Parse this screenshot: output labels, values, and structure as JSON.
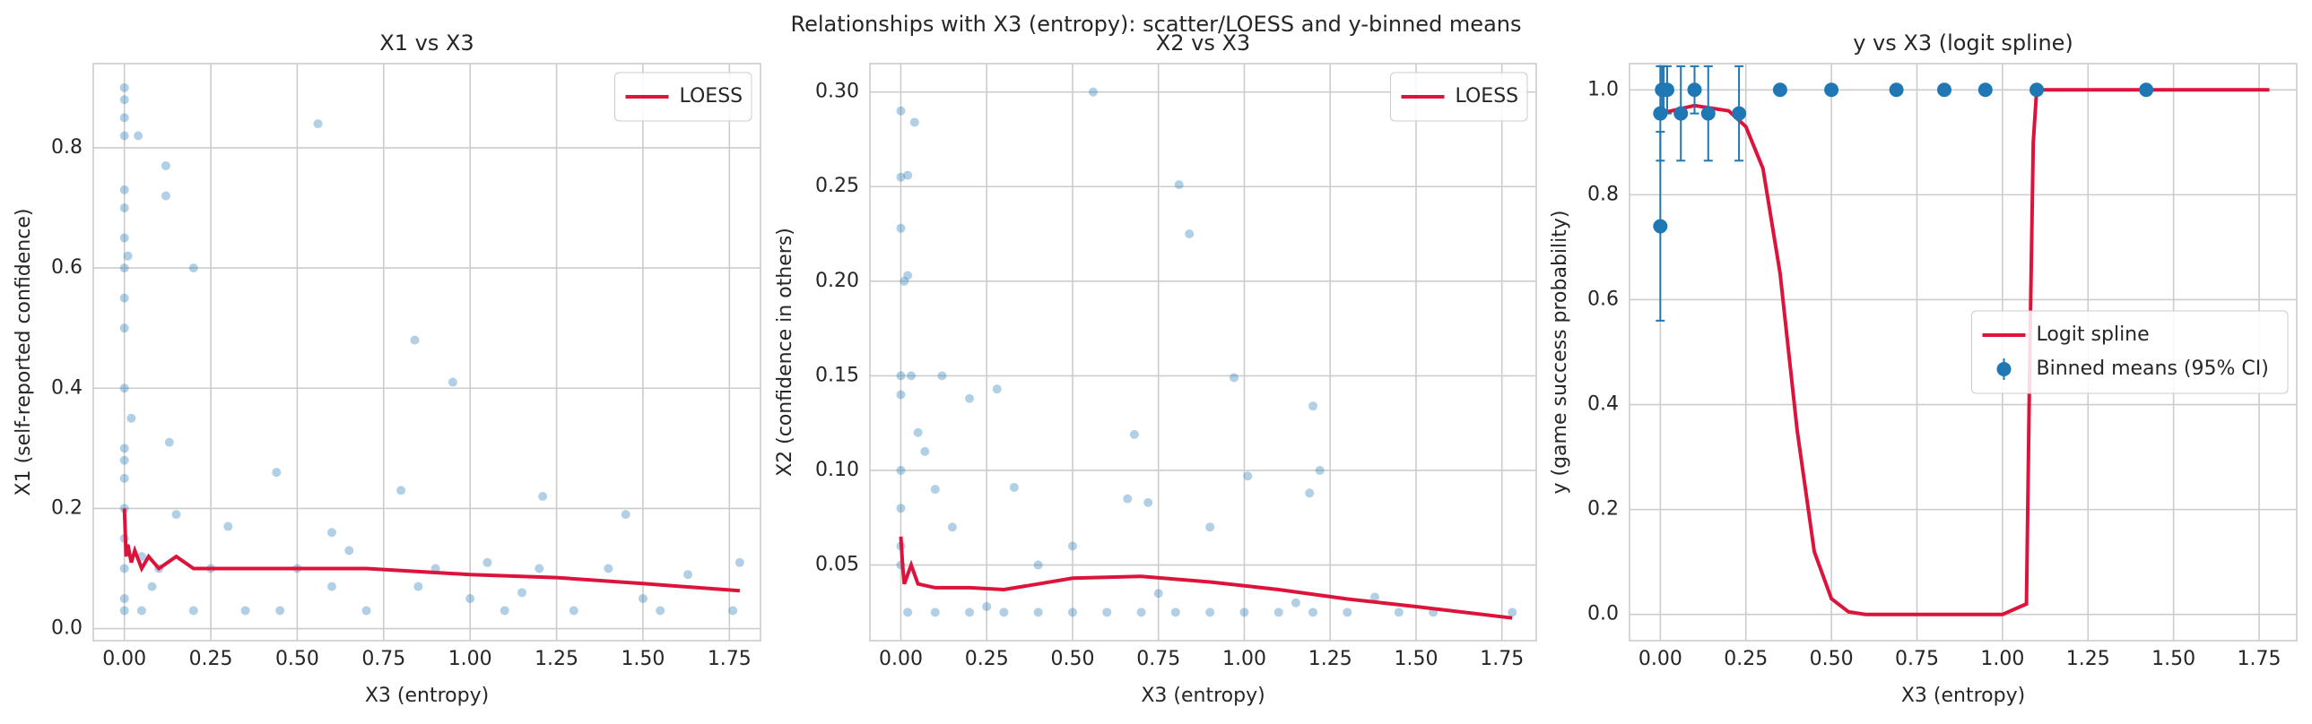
{
  "title": "Relationships with X3 (entropy): scatter/LOESS and y-binned means",
  "chart_data": [
    {
      "type": "scatter",
      "title": "X1 vs X3",
      "xlabel": "X3 (entropy)",
      "ylabel": "X1 (self-reported confidence)",
      "xlim": [
        -0.09,
        1.84
      ],
      "ylim": [
        -0.02,
        0.94
      ],
      "xticks": [
        {
          "value": 0,
          "label": "0.00"
        },
        0.25,
        {
          "value": 0.5,
          "label": "0.50"
        },
        0.75,
        {
          "value": 1,
          "label": "1.00"
        },
        1.25,
        {
          "value": 1.5,
          "label": "1.50"
        },
        1.75
      ],
      "yticks": [
        {
          "value": 0,
          "label": "0.0"
        },
        0.2,
        0.4,
        0.6,
        0.8
      ],
      "grid": true,
      "legend": "upper right",
      "series": [
        {
          "type": "scatter",
          "color": "#1f77b4",
          "x": [
            0,
            0,
            0,
            0,
            0,
            0,
            0,
            0,
            0,
            0,
            0,
            0,
            0,
            0,
            0,
            0,
            0,
            0,
            0,
            0.01,
            0.02,
            0.04,
            0.05,
            0.12,
            0.12,
            0.13,
            0.2,
            0.56,
            0.84,
            0.95,
            0.44,
            0.8,
            1.21,
            1.45,
            0.15,
            0.3,
            0.6,
            0.1,
            0.25,
            0.35,
            0.45,
            0.5,
            0.65,
            0.7,
            0.9,
            1.0,
            1.05,
            1.1,
            1.2,
            1.3,
            1.4,
            1.5,
            1.55,
            1.63,
            1.78,
            1.76,
            0.2,
            0.05,
            0.08,
            0.6,
            0.85,
            1.15
          ],
          "values": [
            0.9,
            0.88,
            0.85,
            0.82,
            0.73,
            0.7,
            0.65,
            0.6,
            0.55,
            0.5,
            0.4,
            0.3,
            0.28,
            0.25,
            0.2,
            0.15,
            0.1,
            0.05,
            0.03,
            0.62,
            0.35,
            0.82,
            0.12,
            0.77,
            0.72,
            0.31,
            0.6,
            0.84,
            0.48,
            0.41,
            0.26,
            0.23,
            0.22,
            0.19,
            0.19,
            0.17,
            0.16,
            0.1,
            0.1,
            0.03,
            0.03,
            0.1,
            0.13,
            0.03,
            0.1,
            0.05,
            0.11,
            0.03,
            0.1,
            0.03,
            0.1,
            0.05,
            0.03,
            0.09,
            0.11,
            0.03,
            0.03,
            0.03,
            0.07,
            0.07,
            0.07,
            0.06
          ]
        },
        {
          "type": "line",
          "name": "LOESS",
          "color": "#dc143c",
          "x": [
            0,
            0.005,
            0.01,
            0.02,
            0.03,
            0.05,
            0.07,
            0.1,
            0.15,
            0.2,
            0.3,
            0.5,
            0.7,
            1.0,
            1.25,
            1.5,
            1.78
          ],
          "values": [
            0.2,
            0.12,
            0.14,
            0.11,
            0.13,
            0.1,
            0.12,
            0.1,
            0.12,
            0.1,
            0.1,
            0.1,
            0.1,
            0.09,
            0.085,
            0.075,
            0.063
          ]
        }
      ]
    },
    {
      "type": "scatter",
      "title": "X2 vs X3",
      "xlabel": "X3 (entropy)",
      "ylabel": "X2 (confidence in others)",
      "xlim": [
        -0.09,
        1.85
      ],
      "ylim": [
        0.01,
        0.315
      ],
      "xticks": [
        {
          "value": 0,
          "label": "0.00"
        },
        0.25,
        {
          "value": 0.5,
          "label": "0.50"
        },
        0.75,
        {
          "value": 1,
          "label": "1.00"
        },
        1.25,
        {
          "value": 1.5,
          "label": "1.50"
        },
        1.75
      ],
      "yticks": [
        0.05,
        {
          "value": 0.1,
          "label": "0.10"
        },
        0.15,
        {
          "value": 0.2,
          "label": "0.20"
        },
        0.25,
        {
          "value": 0.3,
          "label": "0.30"
        }
      ],
      "grid": true,
      "legend": "upper right",
      "series": [
        {
          "type": "scatter",
          "color": "#1f77b4",
          "x": [
            0,
            0,
            0.02,
            0.04,
            0,
            0.01,
            0.02,
            0,
            0,
            0.03,
            0.12,
            0.05,
            0,
            0,
            0,
            0,
            0.56,
            0.81,
            0.84,
            0.97,
            1.2,
            1.22,
            1.19,
            1.01,
            0.68,
            0.28,
            0.2,
            0.33,
            0.07,
            0.1,
            0.15,
            0.66,
            0.72,
            0.9,
            0.5,
            0.4,
            1.38,
            0.02,
            0.1,
            0.2,
            0.3,
            0.4,
            0.5,
            0.6,
            0.7,
            0.8,
            0.9,
            1.0,
            1.1,
            1.2,
            1.3,
            1.45,
            1.55,
            1.78,
            0.25,
            0.75,
            1.15
          ],
          "values": [
            0.29,
            0.255,
            0.256,
            0.284,
            0.228,
            0.2,
            0.203,
            0.15,
            0.14,
            0.15,
            0.15,
            0.12,
            0.1,
            0.08,
            0.06,
            0.05,
            0.3,
            0.251,
            0.225,
            0.149,
            0.134,
            0.1,
            0.088,
            0.097,
            0.119,
            0.143,
            0.138,
            0.091,
            0.11,
            0.09,
            0.07,
            0.085,
            0.083,
            0.07,
            0.06,
            0.05,
            0.033,
            0.025,
            0.025,
            0.025,
            0.025,
            0.025,
            0.025,
            0.025,
            0.025,
            0.025,
            0.025,
            0.025,
            0.025,
            0.025,
            0.025,
            0.025,
            0.025,
            0.025,
            0.028,
            0.035,
            0.03
          ]
        },
        {
          "type": "line",
          "name": "LOESS",
          "color": "#dc143c",
          "x": [
            0,
            0.005,
            0.01,
            0.03,
            0.05,
            0.1,
            0.2,
            0.3,
            0.4,
            0.5,
            0.7,
            0.9,
            1.1,
            1.3,
            1.5,
            1.78
          ],
          "values": [
            0.065,
            0.05,
            0.04,
            0.05,
            0.04,
            0.038,
            0.038,
            0.037,
            0.04,
            0.043,
            0.044,
            0.041,
            0.037,
            0.032,
            0.028,
            0.022
          ]
        }
      ]
    },
    {
      "type": "scatter",
      "title": "y vs X3 (logit spline)",
      "xlabel": "X3 (entropy)",
      "ylabel": "y (game success probability)",
      "xlim": [
        -0.09,
        1.86
      ],
      "ylim": [
        -0.05,
        1.05
      ],
      "xticks": [
        {
          "value": 0,
          "label": "0.00"
        },
        0.25,
        {
          "value": 0.5,
          "label": "0.50"
        },
        0.75,
        {
          "value": 1,
          "label": "1.00"
        },
        1.25,
        {
          "value": 1.5,
          "label": "1.50"
        },
        1.75
      ],
      "yticks": [
        {
          "value": 0,
          "label": "0.0"
        },
        0.2,
        0.4,
        0.6,
        0.8,
        {
          "value": 1,
          "label": "1.0"
        }
      ],
      "grid": true,
      "legend": "center right",
      "series": [
        {
          "type": "line",
          "name": "Logit spline",
          "color": "#dc143c",
          "x": [
            0,
            0.1,
            0.2,
            0.25,
            0.3,
            0.35,
            0.4,
            0.45,
            0.5,
            0.55,
            0.6,
            0.8,
            1.0,
            1.07,
            1.08,
            1.09,
            1.1,
            1.3,
            1.78
          ],
          "values": [
            0.955,
            0.97,
            0.96,
            0.93,
            0.85,
            0.65,
            0.35,
            0.12,
            0.03,
            0.005,
            0,
            0,
            0,
            0.02,
            0.5,
            0.9,
            1,
            1,
            1
          ]
        },
        {
          "type": "errorbar",
          "name": "Binned means (95% CI)",
          "color": "#1f77b4",
          "x": [
            0,
            0,
            0.005,
            0.01,
            0.02,
            0.06,
            0.1,
            0.14,
            0.23,
            0.35,
            0.5,
            0.69,
            0.83,
            0.95,
            1.1,
            1.42
          ],
          "values": [
            0.74,
            0.955,
            1,
            1,
            1,
            0.955,
            1,
            0.955,
            0.955,
            1,
            1,
            1,
            1,
            1,
            1,
            1
          ],
          "errors": [
            0.18,
            0.09,
            0.045,
            0.045,
            0.045,
            0.09,
            0.045,
            0.09,
            0.09,
            0,
            0,
            0,
            0,
            0,
            0,
            0
          ]
        }
      ]
    }
  ]
}
